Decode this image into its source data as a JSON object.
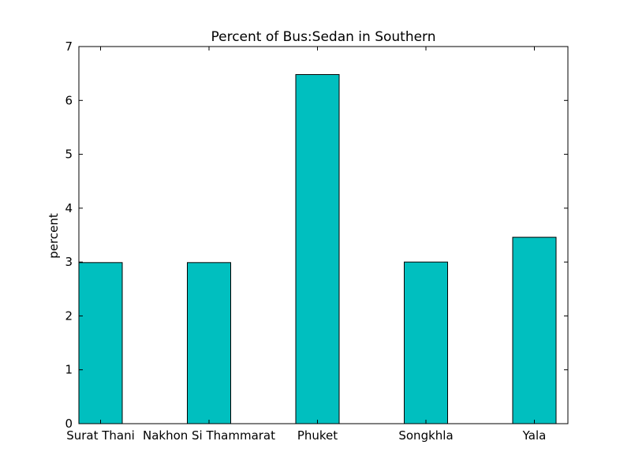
{
  "chart_data": {
    "type": "bar",
    "title": "Percent of Bus:Sedan in Southern",
    "xlabel": "",
    "ylabel": "percent",
    "categories": [
      "Surat Thani",
      "Nakhon Si Thammarat",
      "Phuket",
      "Songkhla",
      "Yala"
    ],
    "values": [
      2.99,
      2.99,
      6.48,
      3.0,
      3.46
    ],
    "ylim": [
      0,
      7
    ],
    "yticks": [
      "0",
      "1",
      "2",
      "3",
      "4",
      "5",
      "6",
      "7"
    ],
    "grid": false,
    "bar_color": "#00bfbf"
  }
}
